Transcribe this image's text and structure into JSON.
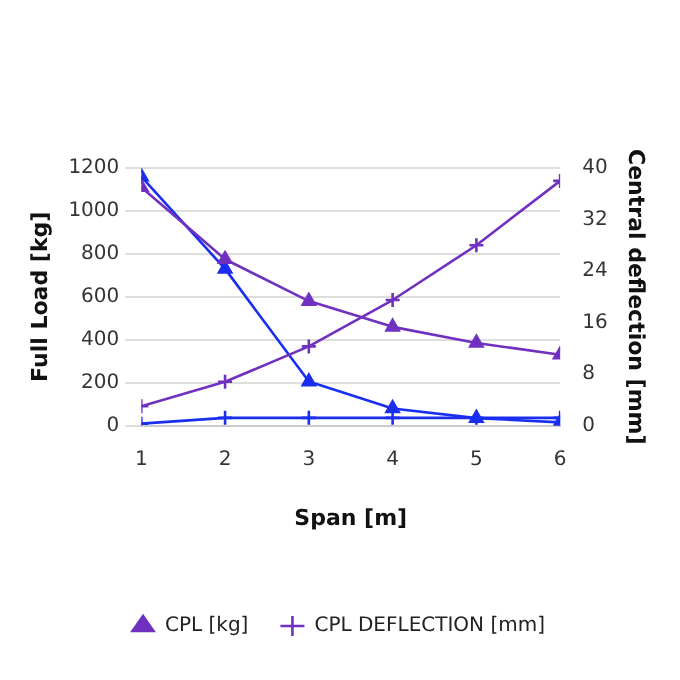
{
  "chart_data": {
    "type": "line",
    "xlabel": "Span [m]",
    "ylabel": "Full Load [kg]",
    "y2label": "Central deflection [mm]",
    "x": [
      1,
      2,
      3,
      4,
      5,
      6
    ],
    "xlim": [
      1,
      6
    ],
    "xticks": [
      1,
      2,
      3,
      4,
      5,
      6
    ],
    "ylim": [
      0,
      1200
    ],
    "yticks": [
      0,
      200,
      400,
      600,
      800,
      1000,
      1200
    ],
    "y2lim": [
      0,
      40
    ],
    "y2ticks": [
      0,
      8,
      16,
      24,
      32,
      40
    ],
    "grid": "y",
    "legend": "bottom",
    "series": [
      {
        "name": "CPL [kg]",
        "color": "#7030c0",
        "marker": "triangle",
        "values": [
          1110,
          775,
          580,
          460,
          385,
          330
        ]
      },
      {
        "name": "CPL DEFLECTION [mm]",
        "color": "#7030c0",
        "marker": "cross",
        "axis": "y2",
        "values": [
          3,
          6.8,
          12.3,
          19.5,
          28,
          38
        ]
      },
      {
        "color": "#1a2ef0",
        "marker": "triangle",
        "values": [
          1160,
          730,
          205,
          80,
          35,
          15
        ]
      },
      {
        "color": "#1a2ef0",
        "marker": "cross",
        "axis": "y2",
        "values": [
          0.3,
          1.2,
          1.2,
          1.2,
          1.2,
          1.2
        ]
      }
    ]
  }
}
